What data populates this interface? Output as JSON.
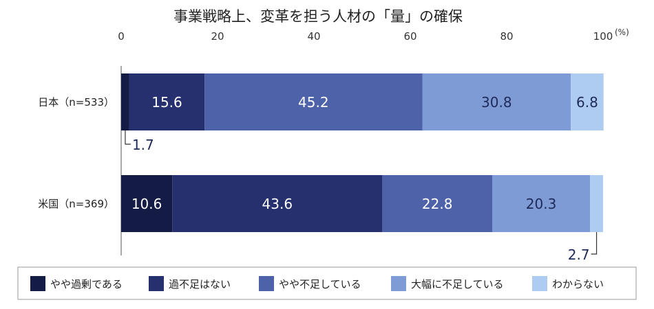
{
  "chart_data": {
    "type": "bar",
    "orientation": "horizontal",
    "stacked": true,
    "title": "事業戦略上、変革を担う人材の「量」の確保",
    "unit_label": "(%)",
    "xlim": [
      0,
      100
    ],
    "x_ticks": [
      "0",
      "20",
      "40",
      "60",
      "80",
      "100"
    ],
    "categories": [
      "日本（n=533）",
      "米国（n=369）"
    ],
    "series": [
      {
        "name": "やや過剰である",
        "color": "#141b45",
        "values": [
          1.7,
          10.6
        ],
        "labels": [
          "1.7",
          "10.6"
        ]
      },
      {
        "name": "過不足はない",
        "color": "#26306e",
        "values": [
          15.6,
          43.6
        ],
        "labels": [
          "15.6",
          "43.6"
        ]
      },
      {
        "name": "やや不足している",
        "color": "#4e62aa",
        "values": [
          45.2,
          22.8
        ],
        "labels": [
          "45.2",
          "22.8"
        ]
      },
      {
        "name": "大幅に不足している",
        "color": "#7f9bd6",
        "values": [
          30.8,
          20.3
        ],
        "labels": [
          "30.8",
          "20.3"
        ]
      },
      {
        "name": "わからない",
        "color": "#aecbf1",
        "values": [
          6.8,
          2.7
        ],
        "labels": [
          "6.8",
          "2.7"
        ]
      }
    ],
    "legend_position": "bottom",
    "grid": false
  }
}
